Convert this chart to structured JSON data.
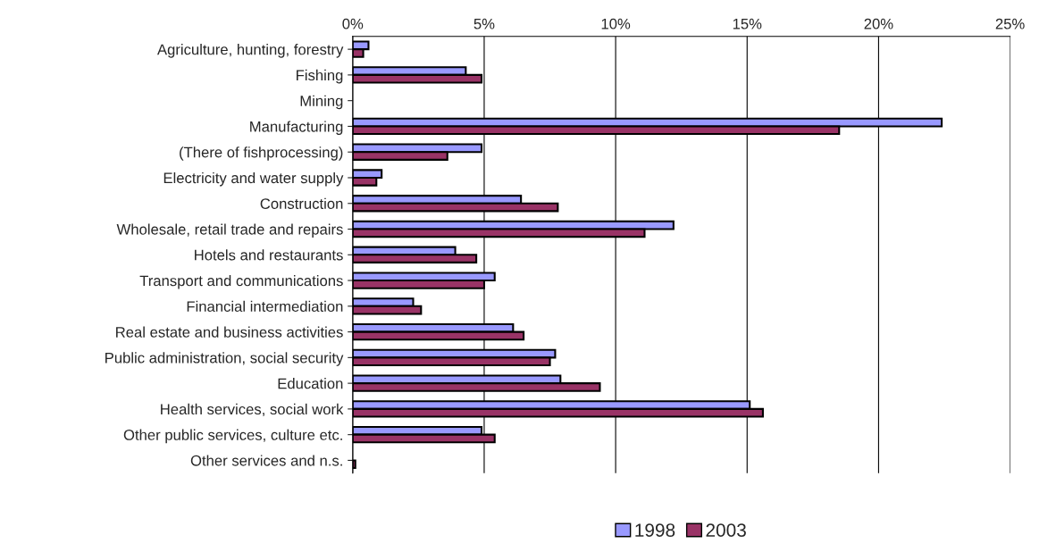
{
  "chart_data": {
    "type": "bar",
    "orientation": "horizontal",
    "categories": [
      "Agriculture, hunting, forestry",
      "Fishing",
      "Mining",
      "Manufacturing",
      "(There of fishprocessing)",
      "Electricity and water supply",
      "Construction",
      "Wholesale, retail trade and repairs",
      "Hotels and restaurants",
      "Transport and communications",
      "Financial intermediation",
      "Real estate and business activities",
      "Public administration, social security",
      "Education",
      "Health services, social work",
      "Other public services, culture etc.",
      "Other services and n.s."
    ],
    "series": [
      {
        "name": "1998",
        "color": "#9999ff",
        "values": [
          0.6,
          4.3,
          null,
          22.4,
          4.9,
          1.1,
          6.4,
          12.2,
          3.9,
          5.4,
          2.3,
          6.1,
          7.7,
          7.9,
          15.1,
          4.9,
          null
        ]
      },
      {
        "name": "2003",
        "color": "#993366",
        "values": [
          0.4,
          4.9,
          null,
          18.5,
          3.6,
          0.9,
          7.8,
          11.1,
          4.7,
          5.0,
          2.6,
          6.5,
          7.5,
          9.4,
          15.6,
          5.4,
          0.1
        ]
      }
    ],
    "xlim": [
      0,
      25
    ],
    "xticks": [
      {
        "value": 0,
        "label": "0%"
      },
      {
        "value": 5,
        "label": "5%"
      },
      {
        "value": 10,
        "label": "10%"
      },
      {
        "value": 15,
        "label": "15%"
      },
      {
        "value": 20,
        "label": "20%"
      },
      {
        "value": 25,
        "label": "25%"
      }
    ],
    "grid": "x",
    "legend": "bottom"
  }
}
